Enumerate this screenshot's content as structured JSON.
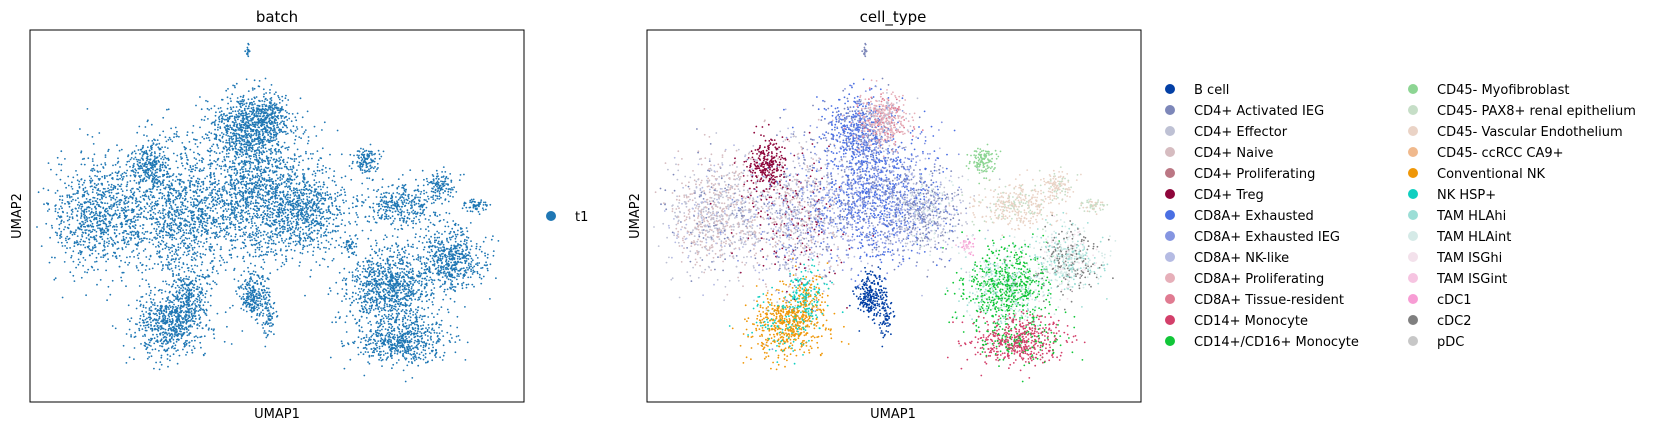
{
  "chart_data": [
    {
      "type": "scatter",
      "title": "batch",
      "xlabel": "UMAP1",
      "ylabel": "UMAP2",
      "ticks": "none",
      "grid": false,
      "legend_position": "right",
      "categories": [
        {
          "name": "t1",
          "color": "#1f77b4"
        }
      ]
    },
    {
      "type": "scatter",
      "title": "cell_type",
      "xlabel": "UMAP1",
      "ylabel": "UMAP2",
      "ticks": "none",
      "grid": false,
      "legend_position": "right",
      "legend_columns": 2,
      "categories": [
        {
          "name": "B cell",
          "color": "#023fa5"
        },
        {
          "name": "CD4+ Activated IEG",
          "color": "#7d87b9"
        },
        {
          "name": "CD4+ Effector",
          "color": "#bec1d4"
        },
        {
          "name": "CD4+ Naive",
          "color": "#d6bcc0"
        },
        {
          "name": "CD4+ Proliferating",
          "color": "#bb7784"
        },
        {
          "name": "CD4+ Treg",
          "color": "#8e063b"
        },
        {
          "name": "CD8A+ Exhausted",
          "color": "#4a6fe3"
        },
        {
          "name": "CD8A+ Exhausted IEG",
          "color": "#8595e1"
        },
        {
          "name": "CD8A+ NK-like",
          "color": "#b5bbe3"
        },
        {
          "name": "CD8A+ Proliferating",
          "color": "#e6afb9"
        },
        {
          "name": "CD8A+ Tissue-resident",
          "color": "#e07b91"
        },
        {
          "name": "CD14+ Monocyte",
          "color": "#d33f6a"
        },
        {
          "name": "CD14+/CD16+ Monocyte",
          "color": "#11c638"
        },
        {
          "name": "CD45- Myofibroblast",
          "color": "#8dd593"
        },
        {
          "name": "CD45- PAX8+ renal epithelium",
          "color": "#c6dec7"
        },
        {
          "name": "CD45- Vascular Endothelium",
          "color": "#ead3c6"
        },
        {
          "name": "CD45- ccRCC CA9+",
          "color": "#f0b98d"
        },
        {
          "name": "Conventional NK",
          "color": "#ef9708"
        },
        {
          "name": "NK HSP+",
          "color": "#0fcfc0"
        },
        {
          "name": "TAM HLAhi",
          "color": "#9cded6"
        },
        {
          "name": "TAM HLAint",
          "color": "#d5eae7"
        },
        {
          "name": "TAM ISGhi",
          "color": "#f3e1eb"
        },
        {
          "name": "TAM ISGint",
          "color": "#f6c4e1"
        },
        {
          "name": "cDC1",
          "color": "#f79cd4"
        },
        {
          "name": "cDC2",
          "color": "#7f7f7f"
        },
        {
          "name": "pDC",
          "color": "#c7c7c7"
        }
      ]
    }
  ]
}
